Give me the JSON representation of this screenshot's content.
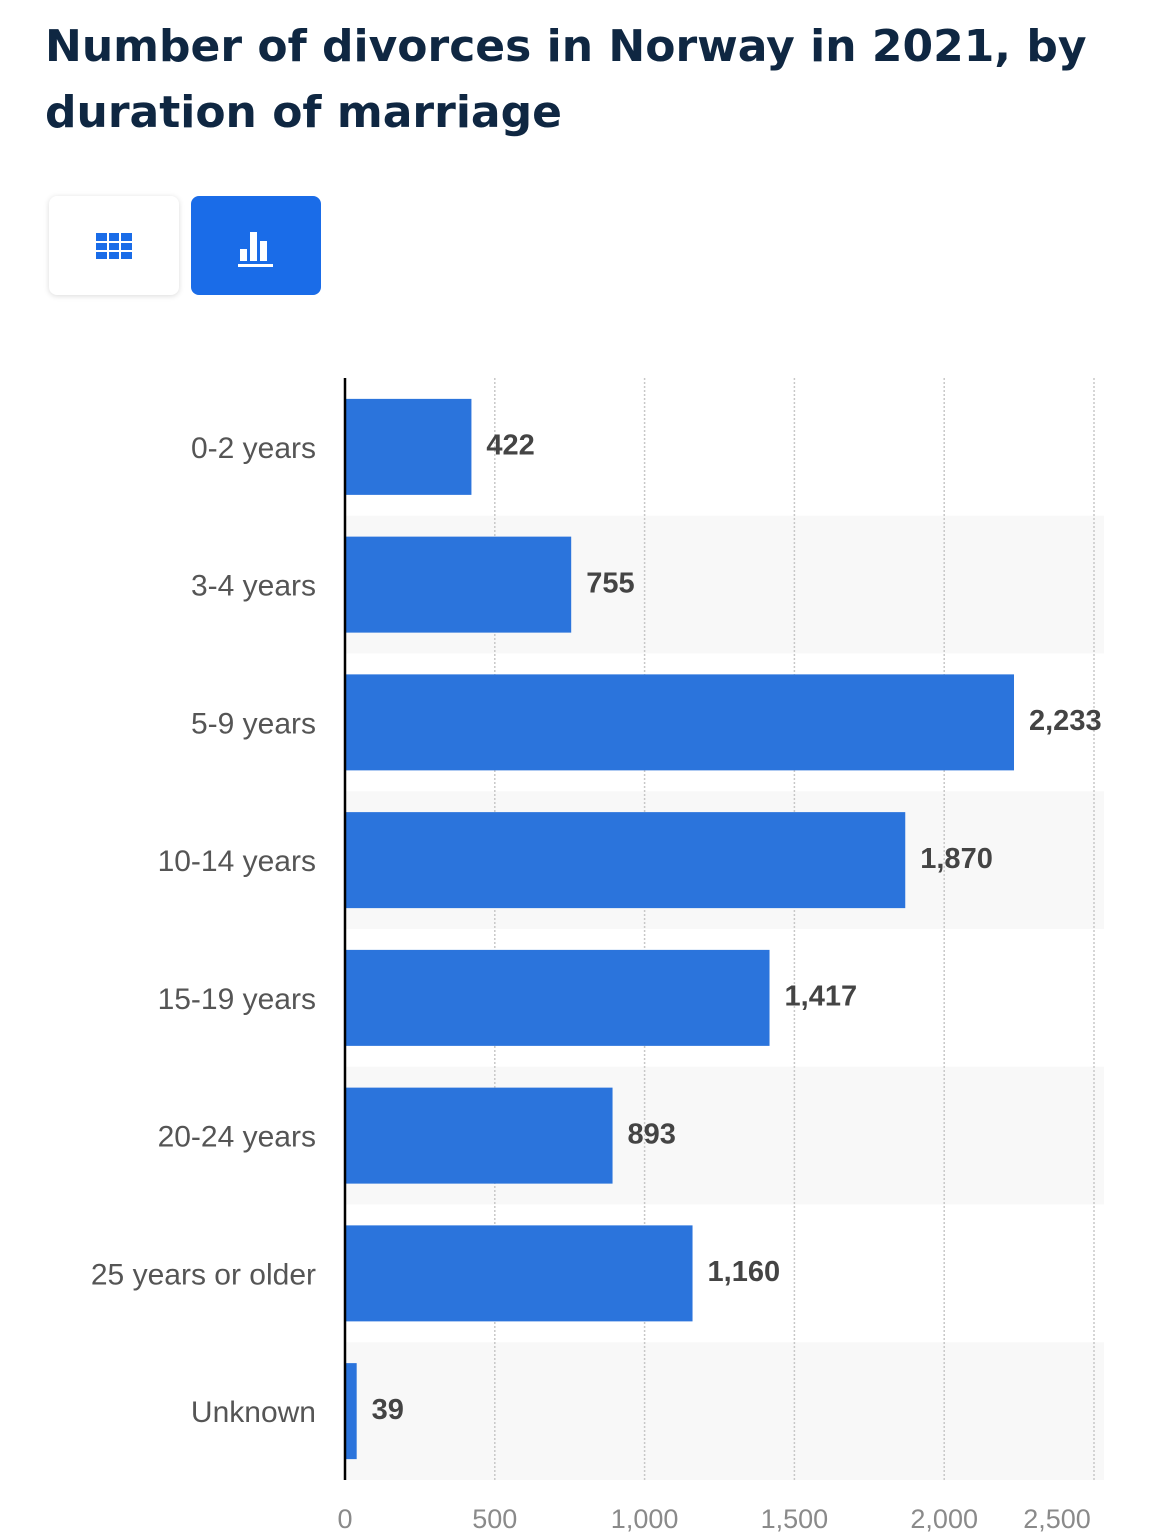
{
  "chart_data": {
    "type": "hbar",
    "title": "Number of divorces in Norway in 2021, by duration of marriage",
    "categories": [
      "0-2 years",
      "3-4 years",
      "5-9 years",
      "10-14 years",
      "15-19 years",
      "20-24 years",
      "25 years or older",
      "Unknown"
    ],
    "values": [
      422,
      755,
      2233,
      1870,
      1417,
      893,
      1160,
      39
    ],
    "value_labels": [
      "422",
      "755",
      "2,233",
      "1,870",
      "1,417",
      "893",
      "1,160",
      "39"
    ],
    "color": "#2b74dc",
    "xlim": [
      0,
      2500
    ],
    "xticks": [
      0,
      500,
      {
        "value": 1000,
        "label": "1,000"
      },
      {
        "value": 1500,
        "label": "1,500"
      },
      {
        "value": 2000,
        "label": "2,000"
      },
      {
        "value": 2500,
        "label": "2,500"
      }
    ],
    "grid": true
  }
}
